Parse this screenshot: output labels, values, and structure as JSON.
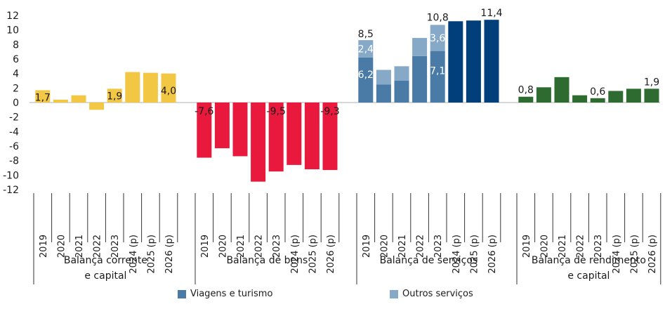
{
  "chart_data": {
    "type": "bar",
    "ylim": [
      -12,
      12
    ],
    "yticks": [
      12,
      10,
      8,
      6,
      4,
      2,
      0,
      -2,
      -4,
      -6,
      -8,
      -10,
      -12
    ],
    "grid": false,
    "colors": {
      "balanca_corrente": "#f2c744",
      "balanca_bens": "#e8193c",
      "viagens": "#4a7aa6",
      "outros": "#87a9c8",
      "servicos_total": "#003f7a",
      "rendimento": "#2e6b30"
    },
    "groups": [
      {
        "label_lines": [
          "Balança corrente",
          "e capital"
        ],
        "categories": [
          "2019",
          "2020",
          "2021",
          "2022",
          "2023",
          "2024 (p)",
          "2025 (p)",
          "2026 (p)"
        ],
        "values": [
          1.7,
          0.4,
          1.0,
          -1.0,
          1.9,
          4.2,
          4.1,
          4.0
        ],
        "color_key": "balanca_corrente",
        "data_labels": [
          {
            "index": 0,
            "text": "1,7",
            "pos": "inside-top"
          },
          {
            "index": 4,
            "text": "1,9",
            "pos": "inside-top"
          },
          {
            "index": 7,
            "text": "4,0",
            "pos": "inside-bottom"
          }
        ]
      },
      {
        "label_lines": [
          "Balança de bens"
        ],
        "categories": [
          "2019",
          "2020",
          "2021",
          "2022",
          "2023",
          "2024 (p)",
          "2025 (p)",
          "2026 (p)"
        ],
        "values": [
          -7.6,
          -6.3,
          -7.4,
          -10.9,
          -9.5,
          -8.6,
          -9.2,
          -9.3
        ],
        "color_key": "balanca_bens",
        "data_labels": [
          {
            "index": 0,
            "text": "-7,6",
            "pos": "inside-top"
          },
          {
            "index": 4,
            "text": "-9,5",
            "pos": "inside-top"
          },
          {
            "index": 7,
            "text": "-9,3",
            "pos": "inside-top"
          }
        ]
      },
      {
        "label_lines": [
          "Balança de serviços"
        ],
        "categories": [
          "2019",
          "2020",
          "2021",
          "2022",
          "2023",
          "2024 (p)",
          "2025 (p)",
          "2026 (p)"
        ],
        "stacked": {
          "viagens": [
            6.2,
            2.5,
            3.0,
            6.4,
            7.1
          ],
          "outros": [
            2.4,
            2.0,
            2.0,
            2.5,
            3.6
          ]
        },
        "values": [
          8.5,
          4.5,
          5.0,
          8.9,
          10.8,
          11.2,
          11.3,
          11.4
        ],
        "color_key": "servicos_total",
        "data_labels": [
          {
            "index": 0,
            "text": "8,5",
            "pos": "above"
          },
          {
            "index": 0,
            "text": "2,4",
            "pos": "outros-segment"
          },
          {
            "index": 0,
            "text": "6,2",
            "pos": "viagens-segment"
          },
          {
            "index": 4,
            "text": "10,8",
            "pos": "above"
          },
          {
            "index": 4,
            "text": "3,6",
            "pos": "outros-segment"
          },
          {
            "index": 4,
            "text": "7,1",
            "pos": "viagens-segment"
          },
          {
            "index": 7,
            "text": "11,4",
            "pos": "above"
          }
        ]
      },
      {
        "label_lines": [
          "Balança de rendimento",
          "e capital"
        ],
        "categories": [
          "2019",
          "2020",
          "2021",
          "2022",
          "2023",
          "2024 (p)",
          "2025 (p)",
          "2026 (p)"
        ],
        "values": [
          0.8,
          2.1,
          3.5,
          1.0,
          0.6,
          1.6,
          1.9,
          1.9
        ],
        "color_key": "rendimento",
        "data_labels": [
          {
            "index": 0,
            "text": "0,8",
            "pos": "above"
          },
          {
            "index": 4,
            "text": "0,6",
            "pos": "above"
          },
          {
            "index": 7,
            "text": "1,9",
            "pos": "above"
          }
        ]
      }
    ],
    "legend": {
      "placement": "bottom",
      "entries": [
        {
          "label": "Viagens e turismo",
          "color_key": "viagens"
        },
        {
          "label": "Outros serviços",
          "color_key": "outros"
        }
      ]
    }
  }
}
